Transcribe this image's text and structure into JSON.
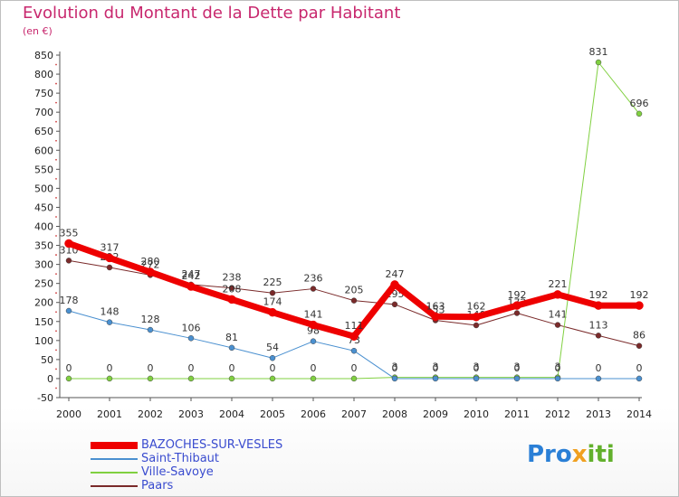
{
  "title": "Evolution du Montant de la Dette par Habitant",
  "subtitle": "(en €)",
  "brand": {
    "p1": "Pro",
    "p2": "x",
    "p3": "iti"
  },
  "chart_data": {
    "type": "line",
    "title": "Evolution du Montant de la Dette par Habitant",
    "ylabel": "(en €)",
    "x": [
      2000,
      2001,
      2002,
      2003,
      2004,
      2005,
      2006,
      2007,
      2008,
      2009,
      2010,
      2011,
      2012,
      2013,
      2014
    ],
    "ylim": [
      -50,
      850
    ],
    "yticks": [
      -50,
      0,
      50,
      100,
      150,
      200,
      250,
      300,
      350,
      400,
      450,
      500,
      550,
      600,
      650,
      700,
      750,
      800,
      850
    ],
    "grid": false,
    "legend_position": "bottom-left",
    "series": [
      {
        "name": "Paars",
        "color": "#7a2a2a",
        "width": 1,
        "markers": true,
        "labels": [
          310,
          292,
          272,
          247,
          238,
          225,
          236,
          205,
          195,
          153,
          140,
          172,
          141,
          113,
          86
        ],
        "values": [
          310,
          292,
          272,
          247,
          238,
          225,
          236,
          205,
          195,
          153,
          140,
          172,
          141,
          113,
          86
        ]
      },
      {
        "name": "Ville-Savoye",
        "color": "#80d040",
        "width": 1,
        "markers": true,
        "labels": [
          0,
          0,
          0,
          0,
          0,
          0,
          0,
          0,
          3,
          3,
          3,
          3,
          3,
          831,
          696
        ],
        "values": [
          0,
          0,
          0,
          0,
          0,
          0,
          0,
          0,
          3,
          3,
          3,
          3,
          3,
          831,
          696
        ]
      },
      {
        "name": "Saint-Thibaut",
        "color": "#4a90d0",
        "width": 1,
        "markers": true,
        "labels": [
          178,
          148,
          128,
          106,
          81,
          54,
          98,
          73,
          0,
          0,
          0,
          0,
          0,
          0,
          0
        ],
        "values": [
          178,
          148,
          128,
          106,
          81,
          54,
          98,
          73,
          0,
          0,
          0,
          0,
          0,
          0,
          0
        ]
      },
      {
        "name": "BAZOCHES-SUR-VESLES",
        "color": "#ee0000",
        "width": 7,
        "markers": true,
        "labels": [
          355,
          317,
          280,
          242,
          208,
          174,
          141,
          111,
          247,
          163,
          162,
          192,
          221,
          192,
          192
        ],
        "values": [
          355,
          317,
          280,
          242,
          208,
          174,
          141,
          111,
          247,
          163,
          162,
          192,
          221,
          192,
          192
        ]
      }
    ],
    "legend": [
      "BAZOCHES-SUR-VESLES",
      "Saint-Thibaut",
      "Ville-Savoye",
      "Paars"
    ]
  }
}
